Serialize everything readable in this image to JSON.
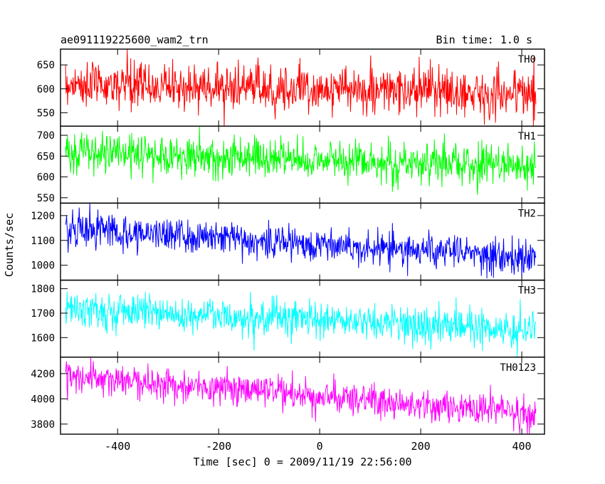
{
  "chart_data": {
    "type": "line",
    "title_left": "ae091119225600_wam2_trn",
    "title_right": "Bin time: 1.0 s",
    "xlabel": "Time [sec] 0 = 2009/11/19 22:56:00",
    "ylabel": "Counts/sec",
    "xlim": [
      -513,
      445
    ],
    "x_ticks": [
      "-400",
      "-200",
      "0",
      "200",
      "400"
    ],
    "x_tick_values": [
      -400,
      -200,
      0,
      200,
      400
    ],
    "x_range_data": [
      -503,
      428
    ],
    "panels": [
      {
        "name": "TH0",
        "color": "#ff0000",
        "ylim": [
          522,
          683
        ],
        "ticks": [
          550,
          600,
          650
        ],
        "tick_labels": [
          "550",
          "600",
          "650"
        ],
        "trend_start": 610,
        "trend_end": 590,
        "noise_sd": 24,
        "clip": [
          522,
          683
        ]
      },
      {
        "name": "TH1",
        "color": "#00ff00",
        "ylim": [
          537,
          722
        ],
        "ticks": [
          550,
          600,
          650,
          700
        ],
        "tick_labels": [
          "550",
          "600",
          "650",
          "700"
        ],
        "trend_start": 660,
        "trend_end": 625,
        "noise_sd": 25,
        "clip": [
          537,
          722
        ]
      },
      {
        "name": "TH2",
        "color": "#0000ff",
        "ylim": [
          940,
          1250
        ],
        "ticks": [
          1000,
          1100,
          1200
        ],
        "tick_labels": [
          "1000",
          "1100",
          "1200"
        ],
        "trend_start": 1150,
        "trend_end": 1030,
        "noise_sd": 35,
        "clip": [
          940,
          1250
        ]
      },
      {
        "name": "TH3",
        "color": "#00ffff",
        "ylim": [
          1520,
          1835
        ],
        "ticks": [
          1600,
          1700,
          1800
        ],
        "tick_labels": [
          "1600",
          "1700",
          "1800"
        ],
        "trend_start": 1720,
        "trend_end": 1630,
        "noise_sd": 38,
        "clip": [
          1520,
          1835
        ]
      },
      {
        "name": "TH0123",
        "color": "#ff00ff",
        "ylim": [
          3720,
          4330
        ],
        "ticks": [
          3800,
          4000,
          4200
        ],
        "tick_labels": [
          "3800",
          "4000",
          "4200"
        ],
        "trend_start": 4180,
        "trend_end": 3880,
        "noise_sd": 65,
        "clip": [
          3720,
          4330
        ]
      }
    ]
  }
}
